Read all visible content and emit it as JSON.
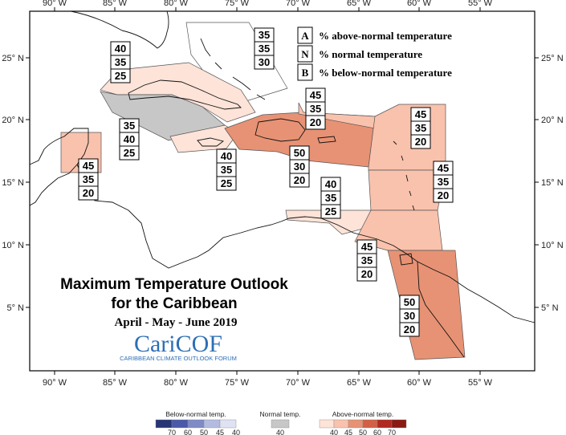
{
  "axes": {
    "longitude_labels": [
      "90° W",
      "85° W",
      "80° W",
      "75° W",
      "70° W",
      "65° W",
      "60° W",
      "55° W"
    ],
    "latitude_labels": [
      "25° N",
      "20° N",
      "15° N",
      "10° N",
      "5° N"
    ]
  },
  "key": {
    "a": {
      "letter": "A",
      "text": "% above-normal temperature"
    },
    "n": {
      "letter": "N",
      "text": "% normal temperature"
    },
    "b": {
      "letter": "B",
      "text": "% below-normal temperature"
    }
  },
  "title": {
    "line1": "Maximum Temperature Outlook",
    "line2": "for the Caribbean",
    "period": "April - May - June 2019"
  },
  "logo": {
    "name": "CariCOF",
    "subtitle": "CARIBBEAN CLIMATE OUTLOOK FORUM"
  },
  "regions": [
    {
      "id": "bahamas",
      "values": [
        "35",
        "35",
        "30"
      ],
      "fill": "#ffffff",
      "category": "none"
    },
    {
      "id": "cuba",
      "values": [
        "40",
        "35",
        "25"
      ],
      "fill": "#fde3d8",
      "category": "above-40"
    },
    {
      "id": "cayman",
      "values": [
        "35",
        "40",
        "25"
      ],
      "fill": "#c7c7c7",
      "category": "normal-40"
    },
    {
      "id": "belize",
      "values": [
        "45",
        "35",
        "20"
      ],
      "fill": "#f9c2ad",
      "category": "above-45"
    },
    {
      "id": "jamaica",
      "values": [
        "40",
        "35",
        "25"
      ],
      "fill": "#fde3d8",
      "category": "above-40"
    },
    {
      "id": "hispaniola",
      "values": [
        "50",
        "30",
        "20"
      ],
      "fill": "#e79274",
      "category": "above-50"
    },
    {
      "id": "turks_caicos",
      "values": [
        "45",
        "35",
        "20"
      ],
      "fill": "#f9c2ad",
      "category": "above-45"
    },
    {
      "id": "leeward",
      "values": [
        "45",
        "35",
        "20"
      ],
      "fill": "#f9c2ad",
      "category": "above-45"
    },
    {
      "id": "windward",
      "values": [
        "45",
        "35",
        "20"
      ],
      "fill": "#f9c2ad",
      "category": "above-45"
    },
    {
      "id": "abc_islands",
      "values": [
        "40",
        "35",
        "25"
      ],
      "fill": "#fde3d8",
      "category": "above-40"
    },
    {
      "id": "trinidad",
      "values": [
        "45",
        "35",
        "20"
      ],
      "fill": "#f9c2ad",
      "category": "above-45"
    },
    {
      "id": "guianas",
      "values": [
        "50",
        "30",
        "20"
      ],
      "fill": "#e79274",
      "category": "above-50"
    }
  ],
  "legend": {
    "below": {
      "title": "Below-normal temp.",
      "ticks": [
        "70",
        "60",
        "50",
        "45",
        "40"
      ],
      "colors": [
        "#273577",
        "#4a5aa9",
        "#7f8bc6",
        "#b4bbe0",
        "#dfe2f2"
      ]
    },
    "normal": {
      "title": "Normal temp.",
      "ticks": [
        "40"
      ],
      "colors": [
        "#c7c7c7"
      ]
    },
    "above": {
      "title": "Above-normal temp.",
      "ticks": [
        "40",
        "45",
        "50",
        "60",
        "70"
      ],
      "colors": [
        "#fde3d8",
        "#f9c2ad",
        "#e79274",
        "#d35f46",
        "#b02a1f",
        "#8a1a12"
      ]
    }
  }
}
